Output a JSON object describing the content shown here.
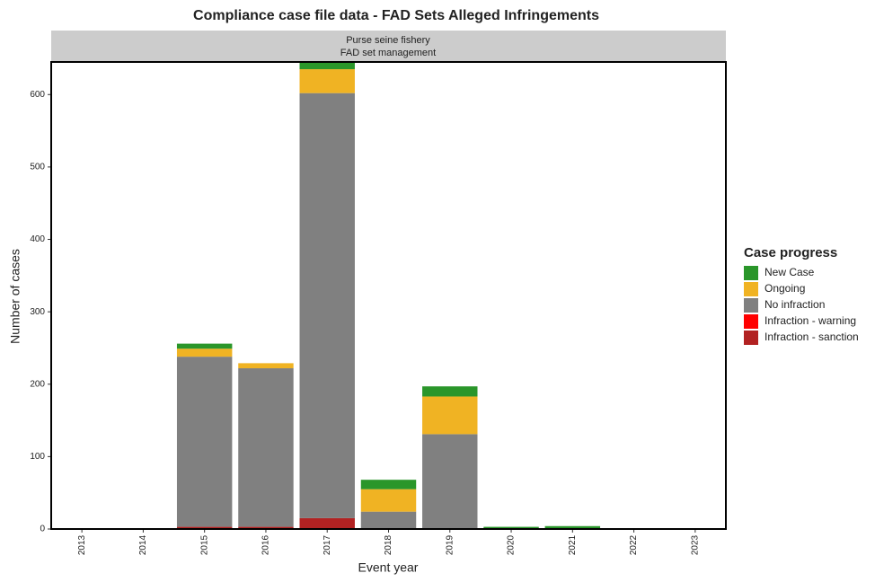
{
  "chart_data": {
    "type": "stacked_bar",
    "title": "Compliance case file data - FAD Sets Alleged Infringements",
    "strip_labels": [
      "Purse seine fishery",
      "FAD set management"
    ],
    "x_label": "Event year",
    "y_label": "Number of cases",
    "legend_title": "Case progress",
    "categories": [
      "2013",
      "2014",
      "2015",
      "2016",
      "2017",
      "2018",
      "2019",
      "2020",
      "2021",
      "2022",
      "2023"
    ],
    "series": [
      {
        "name": "Infraction - sanction",
        "color": "#b22222",
        "values": [
          0,
          0,
          3,
          3,
          15,
          0,
          0,
          0,
          0,
          0,
          0
        ]
      },
      {
        "name": "Infraction - warning",
        "color": "#ff0000",
        "values": [
          0,
          0,
          0,
          0,
          0,
          0,
          0,
          0,
          0,
          0,
          0
        ]
      },
      {
        "name": "No infraction",
        "color": "#808080",
        "values": [
          0,
          0,
          235,
          219,
          587,
          24,
          131,
          0,
          0,
          0,
          0
        ]
      },
      {
        "name": "Ongoing",
        "color": "#f0b323",
        "values": [
          0,
          0,
          11,
          7,
          33,
          31,
          52,
          0,
          0,
          0,
          0
        ]
      },
      {
        "name": "New Case",
        "color": "#2a962a",
        "values": [
          0,
          0,
          7,
          0,
          10,
          13,
          14,
          3,
          4,
          0,
          0
        ]
      }
    ],
    "ylim": [
      0,
      645
    ],
    "yticks": [
      0,
      100,
      200,
      300,
      400,
      500,
      600
    ],
    "grid": false
  }
}
